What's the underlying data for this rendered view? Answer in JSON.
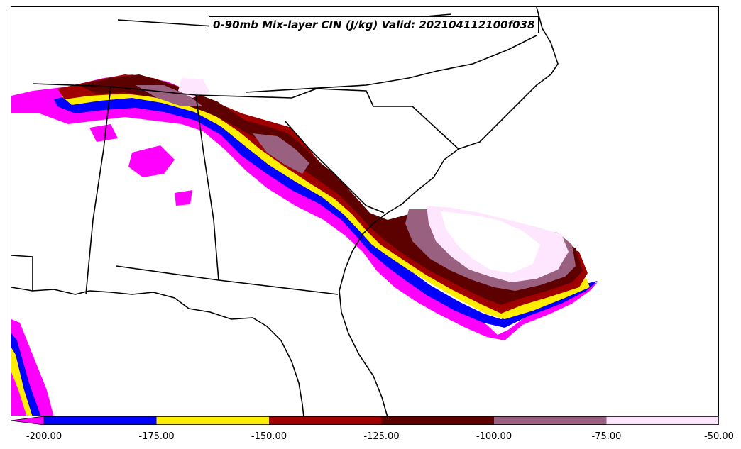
{
  "title": "0-90mb Mix-layer CIN (J/kg) Valid: 202104112100f038",
  "colorbar": {
    "bins": [
      {
        "from": -200,
        "to": -175,
        "color": "#0000ff"
      },
      {
        "from": -175,
        "to": -150,
        "color": "#ffee00"
      },
      {
        "from": -150,
        "to": -125,
        "color": "#a00000"
      },
      {
        "from": -125,
        "to": -100,
        "color": "#5c0000"
      },
      {
        "from": -100,
        "to": -75,
        "color": "#9a6080"
      },
      {
        "from": -75,
        "to": -50,
        "color": "#ffe6ff"
      }
    ],
    "under_color": "#ff00ff",
    "ticks": [
      "-200.00",
      "-175.00",
      "-150.00",
      "-125.00",
      "-100.00",
      "-75.00",
      "-50.00"
    ]
  }
}
